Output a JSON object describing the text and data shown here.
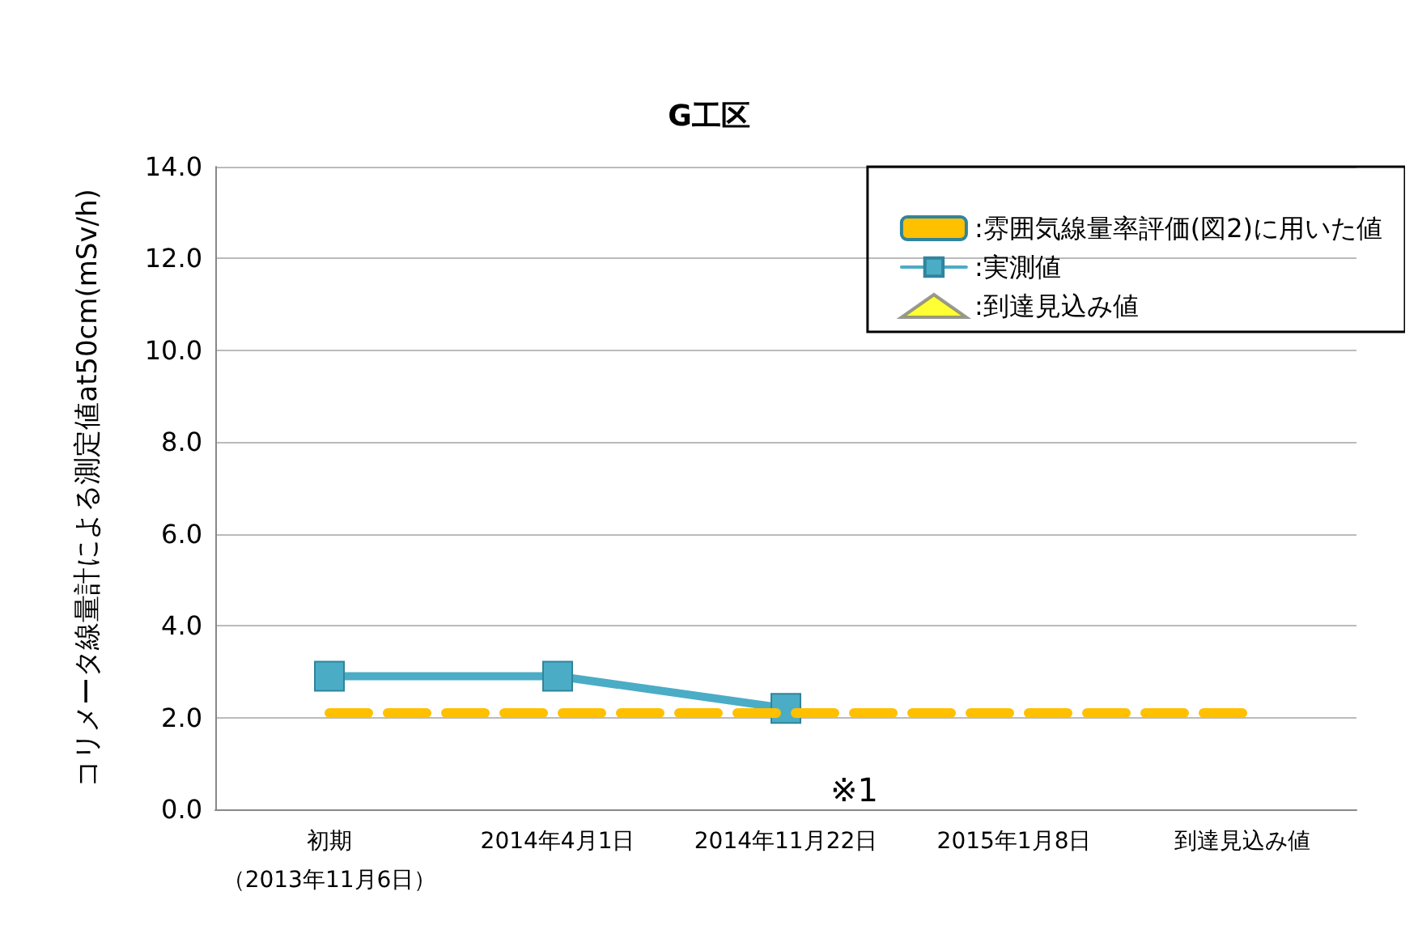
{
  "chart_data": {
    "type": "line",
    "title": "G工区",
    "ylabel": "コリメータ線量計による測定値at50cm(mSv/h)",
    "categories": [
      "初期（2013年11月6日）",
      "2014年4月1日",
      "2014年11月22日",
      "2015年1月8日",
      "到達見込み値"
    ],
    "series": [
      {
        "name": ":雰囲気線量率評価(図2)に用いた値",
        "color": "#ffc000",
        "line_style": "dashed",
        "marker": "none",
        "values": [
          2.1,
          2.1,
          2.1,
          2.1,
          2.1
        ]
      },
      {
        "name": ":実測値",
        "color": "#4bacc6",
        "line_style": "solid",
        "marker": "square",
        "values": [
          2.9,
          2.9,
          2.2,
          null,
          null
        ]
      },
      {
        "name": ":到達見込み値",
        "type": "scatter",
        "color": "#ffff00",
        "marker": "triangle",
        "values": [
          null,
          null,
          null,
          null,
          null
        ]
      }
    ],
    "ylim": [
      0,
      14
    ],
    "yticks": [
      {
        "value": 0,
        "label": "0.0"
      },
      {
        "value": 2,
        "label": "2.0"
      },
      {
        "value": 4,
        "label": "4.0"
      },
      {
        "value": 6,
        "label": "6.0"
      },
      {
        "value": 8,
        "label": "8.0"
      },
      {
        "value": 10,
        "label": "10.0"
      },
      {
        "value": 12,
        "label": "12.0"
      },
      {
        "value": 14,
        "label": "14.0"
      }
    ],
    "grid": "y",
    "legend": "top right",
    "annotations": [
      "※1"
    ]
  }
}
